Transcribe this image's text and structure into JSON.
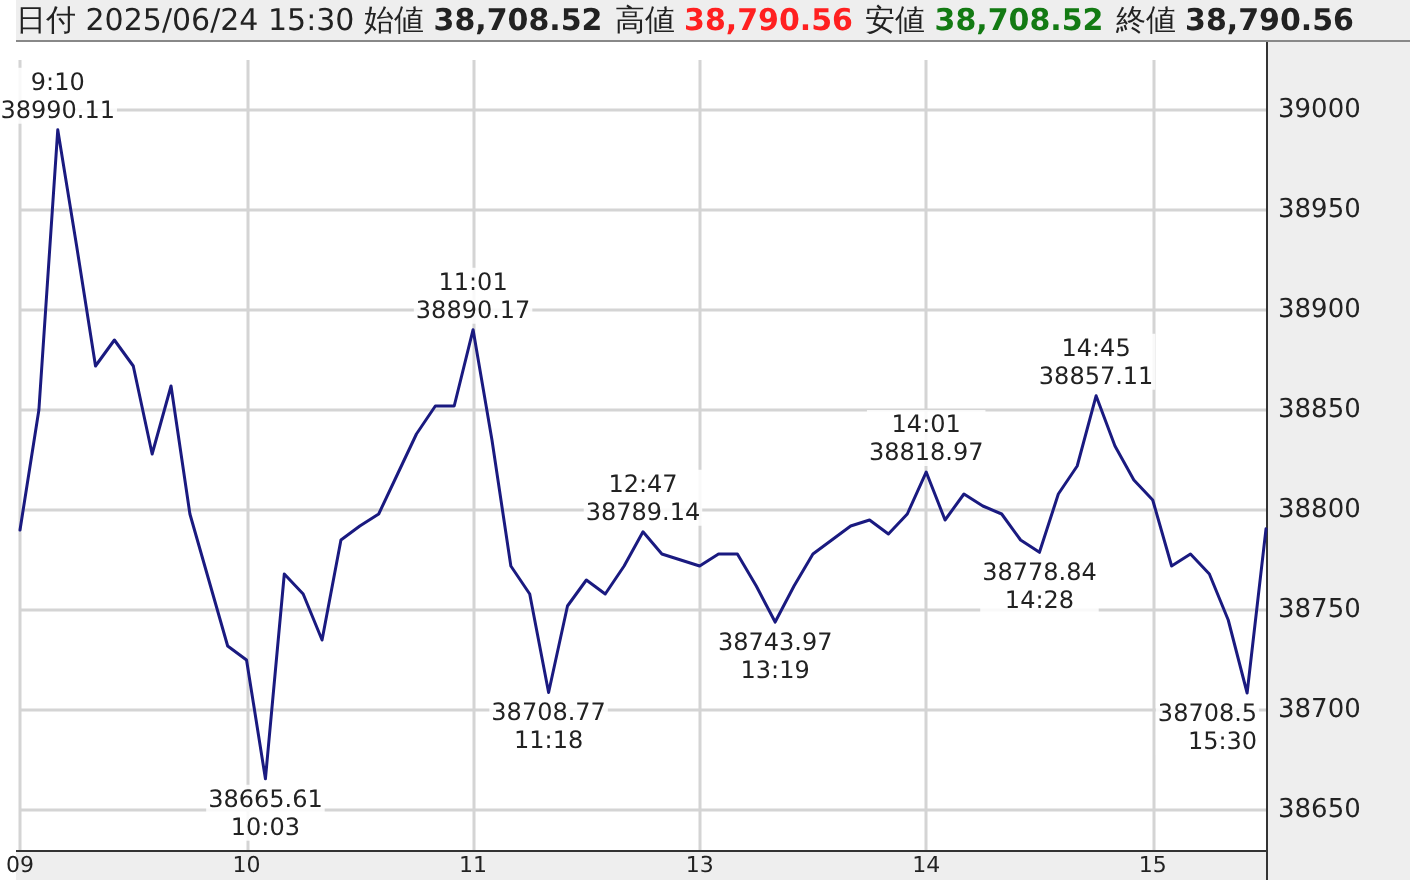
{
  "chart_data": {
    "type": "line",
    "title": "日付 2025/06/24 15:30",
    "annotations": [
      "始値 38,708.52",
      "高値 38,790.56",
      "安値 38,708.52",
      "終値 38,790.56"
    ],
    "categories": [
      "09",
      null,
      null,
      null,
      null,
      null,
      null,
      null,
      null,
      null,
      null,
      null,
      "10",
      null,
      null,
      null,
      null,
      null,
      null,
      null,
      null,
      null,
      null,
      null,
      "11",
      null,
      null,
      null,
      null,
      null,
      null,
      null,
      null,
      null,
      null,
      null,
      "13",
      null,
      null,
      null,
      null,
      null,
      null,
      null,
      null,
      null,
      null,
      null,
      "14",
      null,
      null,
      null,
      null,
      null,
      null,
      null,
      null,
      null,
      null,
      null,
      "15",
      null,
      null,
      null,
      null,
      null,
      null
    ],
    "series": [
      {
        "color": "#1a1a80",
        "values": [
          38790,
          38850,
          38990.11,
          38932,
          38872,
          38885,
          38872,
          38828,
          38862,
          38798,
          38765,
          38732,
          38725,
          38665.61,
          38768,
          38758,
          38735,
          38785,
          38792,
          38798,
          38818,
          38838,
          38852,
          38852,
          38890.17,
          38835,
          38772,
          38758,
          38708.77,
          38752,
          38765,
          38758,
          38772,
          38789.14,
          38778,
          38775,
          38772,
          38778,
          38778,
          38762,
          38743.97,
          38762,
          38778,
          38785,
          38792,
          38795,
          38788,
          38798,
          38818.97,
          38795,
          38808,
          38802,
          38798,
          38785,
          38778.84,
          38808,
          38822,
          38857.11,
          38832,
          38815,
          38805,
          38772,
          38778,
          38768,
          38745,
          38708.5,
          38790.56
        ],
        "value_labels": [
          null,
          null,
          "9:10\n38990.11",
          null,
          null,
          null,
          null,
          null,
          null,
          null,
          null,
          null,
          null,
          "38665.61\n10:03",
          null,
          null,
          null,
          null,
          null,
          null,
          null,
          null,
          null,
          null,
          "11:01\n38890.17",
          null,
          null,
          null,
          "38708.77\n11:18",
          null,
          null,
          null,
          null,
          "12:47\n38789.14",
          null,
          null,
          null,
          null,
          null,
          null,
          "38743.97\n13:19",
          null,
          null,
          null,
          null,
          null,
          null,
          null,
          "14:01\n38818.97",
          null,
          null,
          null,
          null,
          null,
          "38778.84\n14:28",
          null,
          null,
          "14:45\n38857.11",
          null,
          null,
          null,
          null,
          null,
          null,
          null,
          "38708.5\n15:30",
          null
        ]
      }
    ],
    "ylim": [
      38630,
      39025
    ],
    "yticks": [
      38650,
      38700,
      38750,
      38800,
      38850,
      38900,
      38950,
      39000
    ],
    "grid": true,
    "marker": "none"
  }
}
